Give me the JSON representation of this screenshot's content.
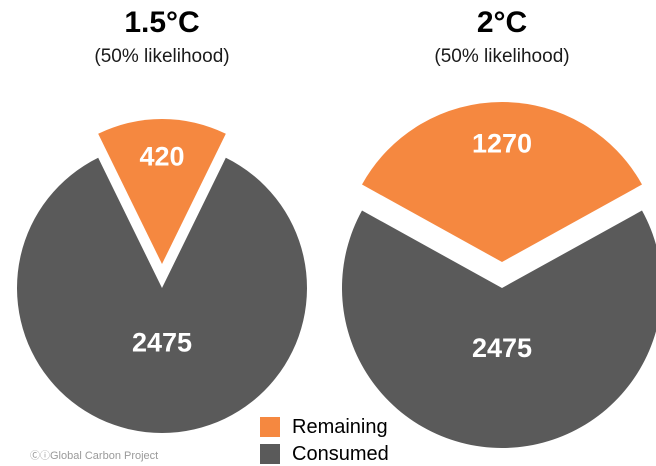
{
  "colors": {
    "remaining": "#f58840",
    "consumed": "#5a5a5a",
    "label_text": "#ffffff"
  },
  "legend": {
    "remaining_label": "Remaining",
    "consumed_label": "Consumed"
  },
  "credit": {
    "icons": "cc-by-icons",
    "text": "Global Carbon Project"
  },
  "chart_data": [
    {
      "type": "pie",
      "title": "1.5°C",
      "subtitle": "(50% likelihood)",
      "slices": [
        {
          "name": "Remaining",
          "value": 420
        },
        {
          "name": "Consumed",
          "value": 2475
        }
      ],
      "exploded": "Remaining",
      "legend_position": "bottom-center"
    },
    {
      "type": "pie",
      "title": "2°C",
      "subtitle": "(50% likelihood)",
      "slices": [
        {
          "name": "Remaining",
          "value": 1270
        },
        {
          "name": "Consumed",
          "value": 2475
        }
      ],
      "exploded": "Remaining",
      "legend_position": "bottom-center"
    }
  ]
}
